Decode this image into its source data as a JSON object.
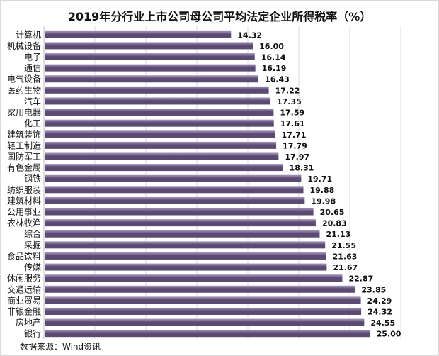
{
  "chart_data": {
    "type": "bar",
    "orientation": "horizontal",
    "title": "2019年分行业上市公司母公司平均法定企业所得税率（%）",
    "categories": [
      "计算机",
      "机械设备",
      "电子",
      "通信",
      "电气设备",
      "医药生物",
      "汽车",
      "家用电器",
      "化工",
      "建筑装饰",
      "轻工制造",
      "国防军工",
      "有色金属",
      "钢铁",
      "纺织服装",
      "建筑材料",
      "公用事业",
      "农林牧渔",
      "综合",
      "采掘",
      "食品饮料",
      "传媒",
      "休闲服务",
      "交通运输",
      "商业贸易",
      "非银金融",
      "房地产",
      "银行"
    ],
    "values": [
      14.32,
      16.0,
      16.14,
      16.19,
      16.43,
      17.22,
      17.35,
      17.59,
      17.61,
      17.71,
      17.79,
      17.97,
      18.31,
      19.71,
      19.88,
      19.98,
      20.65,
      20.83,
      21.13,
      21.55,
      21.63,
      21.67,
      22.87,
      23.85,
      24.29,
      24.32,
      24.55,
      25.0
    ],
    "value_labels": [
      "14.32",
      "16.00",
      "16.14",
      "16.19",
      "16.43",
      "17.22",
      "17.35",
      "17.59",
      "17.61",
      "17.71",
      "17.79",
      "17.97",
      "18.31",
      "19.71",
      "19.88",
      "19.98",
      "20.65",
      "20.83",
      "21.13",
      "21.55",
      "21.63",
      "21.67",
      "22.87",
      "23.85",
      "24.29",
      "24.32",
      "24.55",
      "25.00"
    ],
    "xlim": [
      0,
      26
    ],
    "grid": true,
    "colors": {
      "bar_dark": "#5b4a72",
      "bar_light": "#a897bd",
      "grid": "#d9d9d9"
    }
  },
  "source": "数据来源：Wind资讯"
}
